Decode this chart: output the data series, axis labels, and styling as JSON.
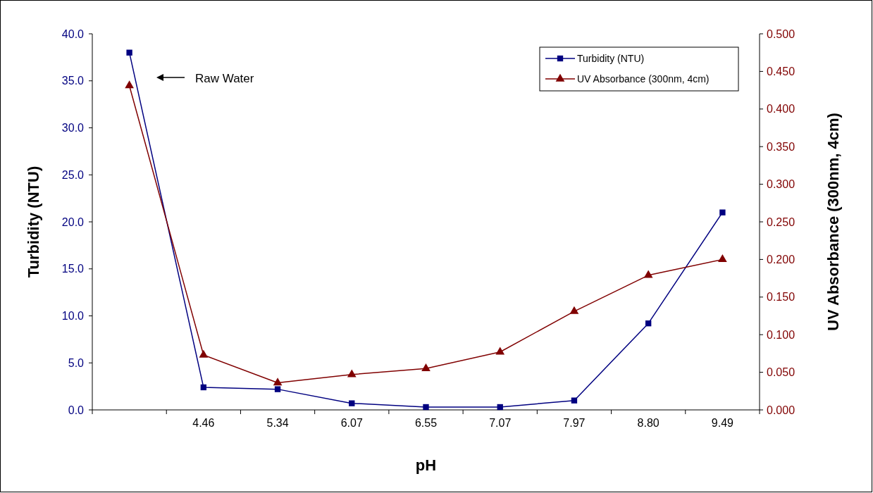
{
  "chart_data": {
    "type": "line",
    "xlabel": "pH",
    "ylabel": "Turbidity (NTU)",
    "y2label": "UV Absorbance (300nm, 4cm)",
    "categories": [
      null,
      "4.46",
      "5.34",
      "6.07",
      "6.55",
      "7.07",
      "7.97",
      "8.80",
      "9.49"
    ],
    "series": [
      {
        "name": "Turbidity (NTU)",
        "color": "#000080",
        "marker": "square",
        "values": [
          38.0,
          2.4,
          2.2,
          0.7,
          0.3,
          0.3,
          1.0,
          9.2,
          21.0
        ]
      },
      {
        "name": "UV Absorbance (300nm, 4cm)",
        "color": "#800000",
        "marker": "triangle",
        "axis": "y2",
        "values": [
          0.431,
          0.073,
          0.036,
          0.047,
          0.055,
          0.077,
          0.131,
          0.179,
          0.2
        ]
      }
    ],
    "ylim": [
      0,
      40
    ],
    "yticks": [
      {
        "value": 0,
        "label": "0.0"
      },
      {
        "value": 5,
        "label": "5.0"
      },
      {
        "value": 10,
        "label": "10.0"
      },
      {
        "value": 15,
        "label": "15.0"
      },
      {
        "value": 20,
        "label": "20.0"
      },
      {
        "value": 25,
        "label": "25.0"
      },
      {
        "value": 30,
        "label": "30.0"
      },
      {
        "value": 35,
        "label": "35.0"
      },
      {
        "value": 40,
        "label": "40.0"
      }
    ],
    "y2lim": [
      0,
      0.5
    ],
    "y2ticks": [
      {
        "value": 0,
        "label": "0.000"
      },
      {
        "value": 0.05,
        "label": "0.050"
      },
      {
        "value": 0.1,
        "label": "0.100"
      },
      {
        "value": 0.15,
        "label": "0.150"
      },
      {
        "value": 0.2,
        "label": "0.200"
      },
      {
        "value": 0.25,
        "label": "0.250"
      },
      {
        "value": 0.3,
        "label": "0.300"
      },
      {
        "value": 0.35,
        "label": "0.350"
      },
      {
        "value": 0.4,
        "label": "0.400"
      },
      {
        "value": 0.45,
        "label": "0.450"
      },
      {
        "value": 0.5,
        "label": "0.500"
      }
    ],
    "annotations": [
      "Raw Water"
    ],
    "legend": "top right",
    "grid": false
  }
}
